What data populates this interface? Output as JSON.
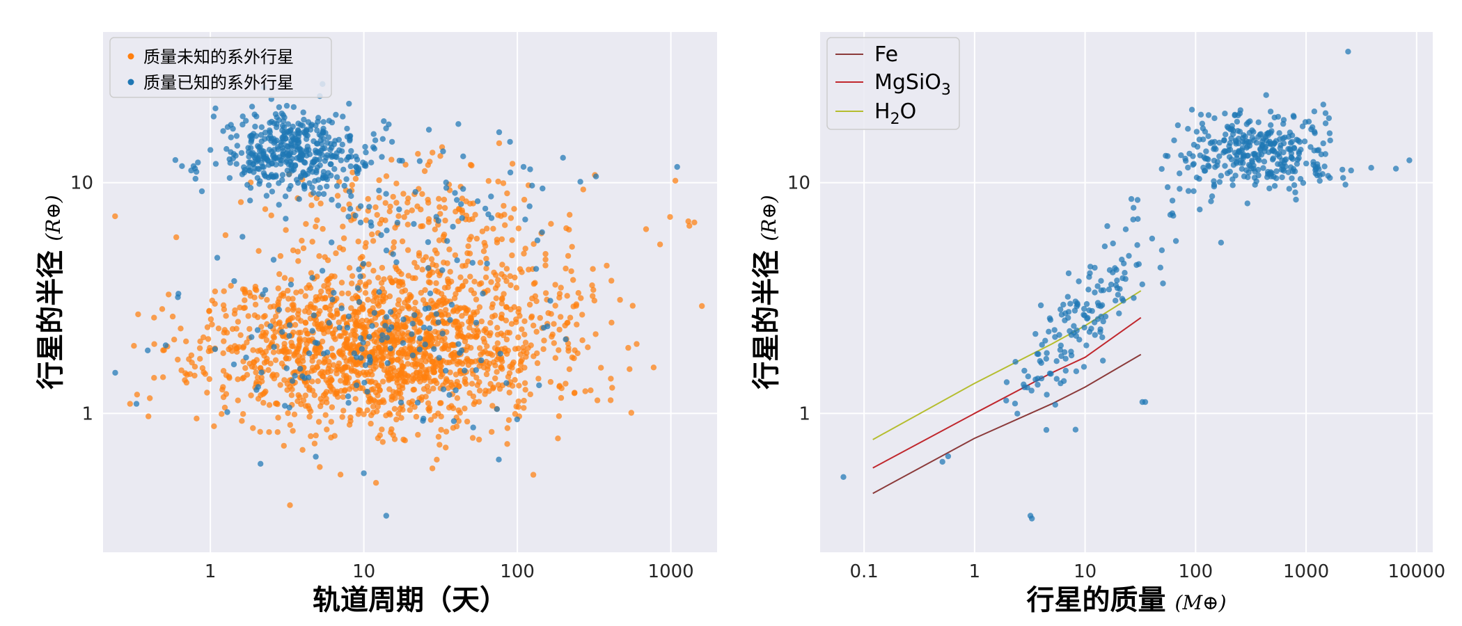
{
  "chart_data": [
    {
      "type": "scatter",
      "xscale": "log",
      "yscale": "log",
      "xlim": [
        0.2,
        2000
      ],
      "ylim": [
        0.25,
        45
      ],
      "xticks": [
        1,
        10,
        100,
        1000
      ],
      "xtick_labels": [
        "1",
        "10",
        "100",
        "1000"
      ],
      "yticks": [
        1,
        10
      ],
      "ytick_labels": [
        "1",
        "10"
      ],
      "xlabel": "轨道周期（天）",
      "ylabel": "行星的半径",
      "ylabel_unit": "(R⊕)",
      "grid": true,
      "legend_position": "upper-left",
      "series": [
        {
          "name": "质量未知的系外行星",
          "color": "#ff7f0e",
          "clusters": [
            {
              "n": 1500,
              "cx": 12,
              "cy": 1.9,
              "sx": 0.55,
              "sy": 0.17,
              "seed": 11
            },
            {
              "n": 250,
              "cx": 60,
              "cy": 3.2,
              "sx": 0.5,
              "sy": 0.25,
              "seed": 12
            },
            {
              "n": 120,
              "cx": 20,
              "cy": 7.5,
              "sx": 0.45,
              "sy": 0.12,
              "seed": 13
            }
          ],
          "points": [
            [
              1300,
              6.8
            ],
            [
              1320,
              6.5
            ],
            [
              1070,
              10.2
            ],
            [
              850,
              5.4
            ],
            [
              320,
              10.8
            ],
            [
              0.43,
              2.6
            ],
            [
              0.6,
              5.8
            ],
            [
              28,
              13.5
            ],
            [
              3.3,
              0.4
            ],
            [
              12,
              0.5
            ],
            [
              0.3,
              1.1
            ]
          ]
        },
        {
          "name": "质量已知的系外行星",
          "color": "#1f77b4",
          "clusters": [
            {
              "n": 420,
              "cx": 3.5,
              "cy": 13.5,
              "sx": 0.25,
              "sy": 0.09,
              "seed": 21
            },
            {
              "n": 150,
              "cx": 12,
              "cy": 2.2,
              "sx": 0.5,
              "sy": 0.2,
              "seed": 22
            },
            {
              "n": 60,
              "cx": 30,
              "cy": 9,
              "sx": 0.45,
              "sy": 0.12,
              "seed": 23
            }
          ],
          "points": [
            [
              0.24,
              1.5
            ],
            [
              0.33,
              1.1
            ],
            [
              0.62,
              3.3
            ],
            [
              1100,
              11.7
            ],
            [
              10,
              0.55
            ],
            [
              14,
              0.36
            ],
            [
              8,
              22
            ],
            [
              0.8,
              10.4
            ]
          ]
        }
      ]
    },
    {
      "type": "scatter",
      "xscale": "log",
      "yscale": "log",
      "xlim": [
        0.04,
        14000
      ],
      "ylim": [
        0.25,
        45
      ],
      "xticks": [
        0.1,
        1,
        10,
        100,
        1000,
        10000
      ],
      "xtick_labels": [
        "0.1",
        "1",
        "10",
        "100",
        "1000",
        "10000"
      ],
      "yticks": [
        1,
        10
      ],
      "ytick_labels": [
        "1",
        "10"
      ],
      "xlabel": "行星的质量",
      "xlabel_unit": "(M⊕)",
      "ylabel": "行星的半径",
      "ylabel_unit": "(R⊕)",
      "grid": true,
      "legend_position": "upper-left",
      "series": [
        {
          "name": "",
          "color": "#1f77b4",
          "clusters": [
            {
              "n": 330,
              "cx": 350,
              "cy": 13.5,
              "sx": 0.38,
              "sy": 0.085,
              "seed": 31
            },
            {
              "n": 160,
              "cx": 9,
              "cy": 2.6,
              "sx": 0.45,
              "sy": 0.12,
              "seed": 32,
              "slope": 0.5
            }
          ],
          "points": [
            [
              0.065,
              0.53
            ],
            [
              3.2,
              0.36
            ],
            [
              2400,
              37
            ],
            [
              3.3,
              0.35
            ],
            [
              8.2,
              0.85
            ],
            [
              33,
              1.12
            ],
            [
              35,
              1.12
            ],
            [
              8600,
              12.5
            ],
            [
              170,
              5.5
            ],
            [
              6500,
              11.5
            ]
          ]
        }
      ],
      "lines": [
        {
          "name": "Fe",
          "name_sub": "",
          "name_tail": "",
          "color": "#8b3a3a",
          "x": [
            0.12,
            1,
            5,
            10,
            32
          ],
          "y": [
            0.45,
            0.78,
            1.1,
            1.3,
            1.8
          ]
        },
        {
          "name": "MgSiO",
          "name_sub": "3",
          "name_tail": "",
          "color": "#c0272d",
          "x": [
            0.12,
            1,
            5,
            10,
            32
          ],
          "y": [
            0.58,
            1.0,
            1.5,
            1.75,
            2.6
          ]
        },
        {
          "name": "H",
          "name_sub": "2",
          "name_tail": "O",
          "color": "#b5bd2e",
          "x": [
            0.12,
            1,
            5,
            10,
            32
          ],
          "y": [
            0.77,
            1.35,
            2.0,
            2.4,
            3.4
          ]
        }
      ]
    }
  ]
}
